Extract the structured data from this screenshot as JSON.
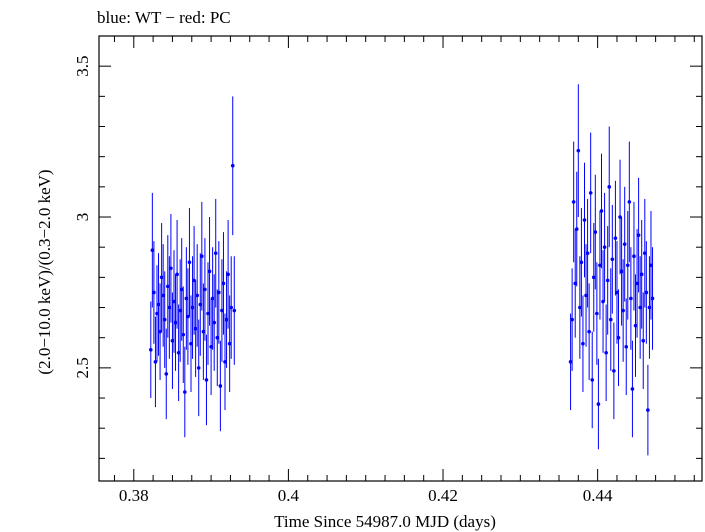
{
  "chart_data": {
    "type": "scatter",
    "title": "blue: WT − red: PC",
    "xlabel": "Time Since 54987.0 MJD (days)",
    "ylabel": "(2.0−10.0 keV)/(0.3−2.0 keV)",
    "xlim": [
      0.3755,
      0.4535
    ],
    "ylim": [
      2.125,
      3.6
    ],
    "x_ticks": [
      0.38,
      0.4,
      0.42,
      0.44
    ],
    "x_tick_labels": [
      "0.38",
      "0.4",
      "0.42",
      "0.44"
    ],
    "y_ticks": [
      2.5,
      3.0,
      3.5
    ],
    "y_tick_labels": [
      "2.5",
      "3",
      "3.5"
    ],
    "series": [
      {
        "name": "WT",
        "color": "#0000ff",
        "points": [
          [
            0.3822,
            2.56,
            0.16
          ],
          [
            0.3824,
            2.89,
            0.19
          ],
          [
            0.3826,
            2.75,
            0.17
          ],
          [
            0.3828,
            2.52,
            0.15
          ],
          [
            0.383,
            2.68,
            0.16
          ],
          [
            0.3832,
            2.71,
            0.17
          ],
          [
            0.3834,
            2.62,
            0.16
          ],
          [
            0.3836,
            2.8,
            0.18
          ],
          [
            0.3838,
            2.74,
            0.17
          ],
          [
            0.384,
            2.66,
            0.16
          ],
          [
            0.3842,
            2.48,
            0.15
          ],
          [
            0.3844,
            2.77,
            0.17
          ],
          [
            0.3846,
            2.7,
            0.17
          ],
          [
            0.3848,
            2.83,
            0.18
          ],
          [
            0.385,
            2.59,
            0.16
          ],
          [
            0.3852,
            2.72,
            0.17
          ],
          [
            0.3854,
            2.65,
            0.16
          ],
          [
            0.3856,
            2.81,
            0.18
          ],
          [
            0.3858,
            2.55,
            0.16
          ],
          [
            0.386,
            2.69,
            0.17
          ],
          [
            0.3862,
            2.76,
            0.17
          ],
          [
            0.3864,
            2.61,
            0.16
          ],
          [
            0.3866,
            2.42,
            0.15
          ],
          [
            0.3868,
            2.73,
            0.17
          ],
          [
            0.387,
            2.67,
            0.16
          ],
          [
            0.3872,
            2.85,
            0.18
          ],
          [
            0.3874,
            2.58,
            0.16
          ],
          [
            0.3876,
            2.7,
            0.17
          ],
          [
            0.3878,
            2.79,
            0.18
          ],
          [
            0.388,
            2.63,
            0.16
          ],
          [
            0.3882,
            2.74,
            0.17
          ],
          [
            0.3884,
            2.5,
            0.16
          ],
          [
            0.3886,
            2.71,
            0.17
          ],
          [
            0.3888,
            2.87,
            0.18
          ],
          [
            0.389,
            2.62,
            0.16
          ],
          [
            0.3892,
            2.76,
            0.17
          ],
          [
            0.3894,
            2.46,
            0.15
          ],
          [
            0.3896,
            2.68,
            0.17
          ],
          [
            0.3898,
            2.82,
            0.18
          ],
          [
            0.39,
            2.57,
            0.16
          ],
          [
            0.3902,
            2.73,
            0.17
          ],
          [
            0.3904,
            2.65,
            0.16
          ],
          [
            0.3906,
            2.88,
            0.18
          ],
          [
            0.3908,
            2.6,
            0.16
          ],
          [
            0.391,
            2.75,
            0.17
          ],
          [
            0.3912,
            2.44,
            0.15
          ],
          [
            0.3914,
            2.69,
            0.17
          ],
          [
            0.3916,
            2.78,
            0.17
          ],
          [
            0.3918,
            2.52,
            0.16
          ],
          [
            0.392,
            2.66,
            0.16
          ],
          [
            0.3922,
            2.81,
            0.18
          ],
          [
            0.3924,
            2.58,
            0.16
          ],
          [
            0.3926,
            2.7,
            0.17
          ],
          [
            0.3928,
            3.17,
            0.23
          ],
          [
            0.393,
            2.69,
            0.18
          ]
        ]
      },
      {
        "name": "WT",
        "color": "#0000ff",
        "points": [
          [
            0.4365,
            2.52,
            0.16
          ],
          [
            0.4367,
            2.66,
            0.17
          ],
          [
            0.4369,
            3.05,
            0.2
          ],
          [
            0.4371,
            2.78,
            0.18
          ],
          [
            0.4373,
            2.96,
            0.19
          ],
          [
            0.4375,
            3.22,
            0.22
          ],
          [
            0.4377,
            2.7,
            0.17
          ],
          [
            0.4379,
            2.85,
            0.18
          ],
          [
            0.4381,
            2.58,
            0.16
          ],
          [
            0.4383,
            2.99,
            0.19
          ],
          [
            0.4385,
            2.74,
            0.17
          ],
          [
            0.4387,
            2.88,
            0.18
          ],
          [
            0.4389,
            2.62,
            0.16
          ],
          [
            0.4391,
            3.08,
            0.2
          ],
          [
            0.4393,
            2.46,
            0.16
          ],
          [
            0.4395,
            2.8,
            0.18
          ],
          [
            0.4397,
            2.95,
            0.19
          ],
          [
            0.4399,
            2.68,
            0.17
          ],
          [
            0.4401,
            2.38,
            0.15
          ],
          [
            0.4403,
            2.84,
            0.18
          ],
          [
            0.4405,
            3.02,
            0.19
          ],
          [
            0.4407,
            2.72,
            0.17
          ],
          [
            0.4409,
            2.9,
            0.18
          ],
          [
            0.4411,
            2.55,
            0.16
          ],
          [
            0.4413,
            2.79,
            0.18
          ],
          [
            0.4415,
            3.1,
            0.2
          ],
          [
            0.4417,
            2.66,
            0.17
          ],
          [
            0.4419,
            2.86,
            0.18
          ],
          [
            0.4421,
            2.49,
            0.16
          ],
          [
            0.4423,
            2.93,
            0.19
          ],
          [
            0.4425,
            2.75,
            0.17
          ],
          [
            0.4427,
            2.6,
            0.16
          ],
          [
            0.4429,
            3.0,
            0.19
          ],
          [
            0.4431,
            2.82,
            0.18
          ],
          [
            0.4433,
            2.69,
            0.17
          ],
          [
            0.4435,
            2.91,
            0.19
          ],
          [
            0.4437,
            2.57,
            0.16
          ],
          [
            0.4439,
            2.84,
            0.18
          ],
          [
            0.4441,
            3.05,
            0.2
          ],
          [
            0.4443,
            2.73,
            0.17
          ],
          [
            0.4445,
            2.43,
            0.16
          ],
          [
            0.4447,
            2.87,
            0.18
          ],
          [
            0.4449,
            2.64,
            0.17
          ],
          [
            0.4451,
            2.78,
            0.18
          ],
          [
            0.4453,
            2.94,
            0.19
          ],
          [
            0.4455,
            2.7,
            0.17
          ],
          [
            0.4457,
            2.81,
            0.18
          ],
          [
            0.4459,
            2.59,
            0.16
          ],
          [
            0.4461,
            2.88,
            0.18
          ],
          [
            0.4463,
            2.75,
            0.17
          ],
          [
            0.4465,
            2.36,
            0.15
          ],
          [
            0.4467,
            2.7,
            0.17
          ],
          [
            0.4469,
            2.84,
            0.18
          ],
          [
            0.4471,
            2.73,
            0.17
          ]
        ]
      }
    ]
  }
}
